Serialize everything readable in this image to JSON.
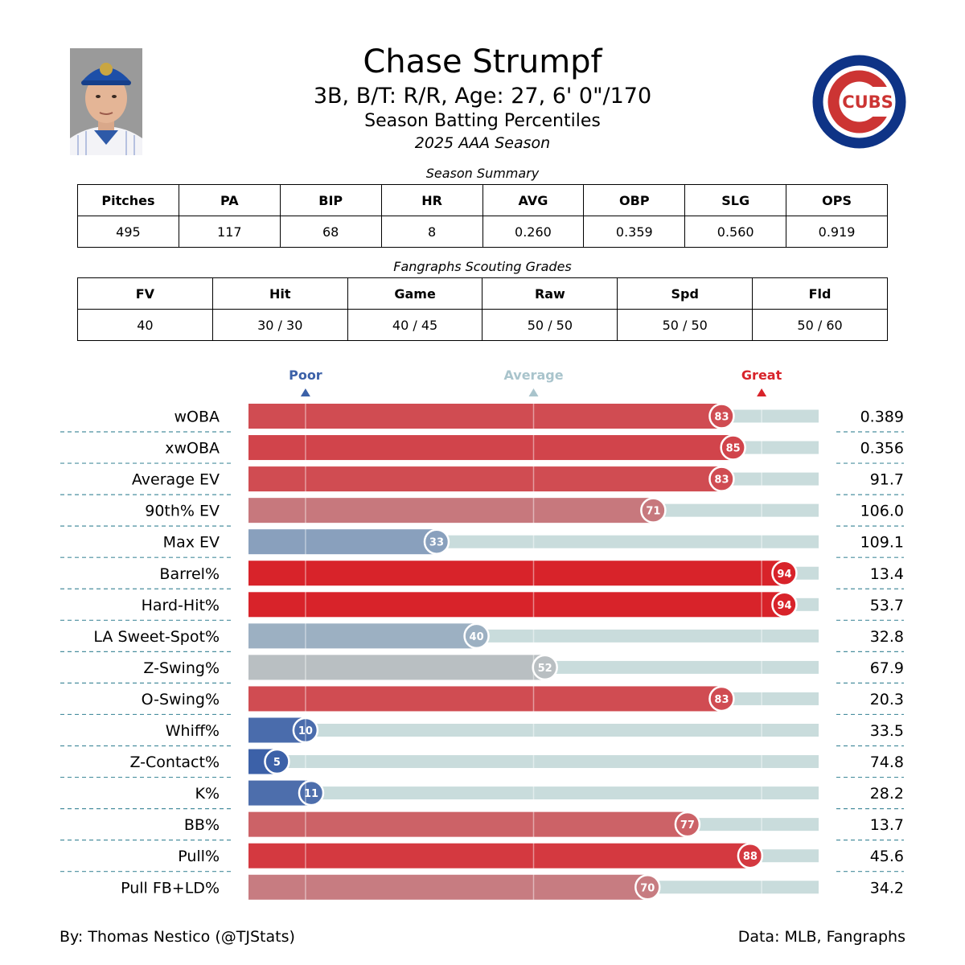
{
  "player": {
    "name": "Chase Strumpf",
    "details": "3B, B/T: R/R, Age: 27, 6' 0\"/170",
    "report_type": "Season Batting Percentiles",
    "season": "2025 AAA Season"
  },
  "team_logo": {
    "text": "CUBS",
    "ring_color": "#0E3386",
    "c_color": "#CC3433"
  },
  "season_summary": {
    "caption": "Season Summary",
    "headers": [
      "Pitches",
      "PA",
      "BIP",
      "HR",
      "AVG",
      "OBP",
      "SLG",
      "OPS"
    ],
    "values": [
      "495",
      "117",
      "68",
      "8",
      "0.260",
      "0.359",
      "0.560",
      "0.919"
    ]
  },
  "scouting_grades": {
    "caption": "Fangraphs Scouting Grades",
    "headers": [
      "FV",
      "Hit",
      "Game",
      "Raw",
      "Spd",
      "Fld"
    ],
    "values": [
      "40",
      "30 / 30",
      "40 / 45",
      "50 / 50",
      "50 / 50",
      "50 / 60"
    ]
  },
  "chart_data": {
    "type": "bar",
    "orientation": "horizontal",
    "title": "Season Batting Percentiles",
    "xlim": [
      0,
      100
    ],
    "markers": [
      {
        "label": "Poor",
        "value": 10,
        "color": "#3c61a8"
      },
      {
        "label": "Average",
        "value": 50,
        "color": "#a9c4cc"
      },
      {
        "label": "Great",
        "value": 90,
        "color": "#d8232a"
      }
    ],
    "categories": [
      "wOBA",
      "xwOBA",
      "Average EV",
      "90th% EV",
      "Max EV",
      "Barrel%",
      "Hard-Hit%",
      "LA Sweet-Spot%",
      "Z-Swing%",
      "O-Swing%",
      "Whiff%",
      "Z-Contact%",
      "K%",
      "BB%",
      "Pull%",
      "Pull FB+LD%"
    ],
    "percentiles": [
      83,
      85,
      83,
      71,
      33,
      94,
      94,
      40,
      52,
      83,
      10,
      5,
      11,
      77,
      88,
      70
    ],
    "stat_values": [
      "0.389",
      "0.356",
      "91.7",
      "106.0",
      "109.1",
      "13.4",
      "53.7",
      "32.8",
      "67.9",
      "20.3",
      "33.5",
      "74.8",
      "28.2",
      "13.7",
      "45.6",
      "34.2"
    ]
  },
  "footer": {
    "credit": "By: Thomas Nestico (@TJStats)",
    "source": "Data: MLB, Fangraphs"
  }
}
